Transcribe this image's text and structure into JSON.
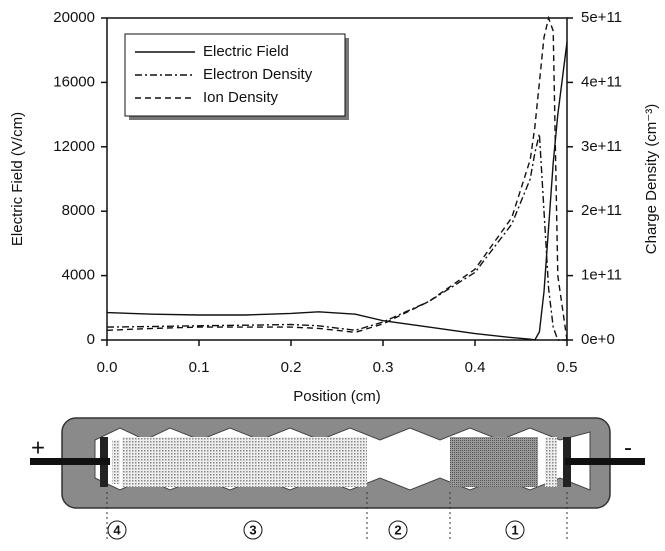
{
  "chart_data": {
    "type": "line",
    "xlabel": "Position (cm)",
    "ylabel": "Electric Field (V/cm)",
    "y2label": "Charge Density (cm⁻³)",
    "x": [
      0,
      0.05,
      0.1,
      0.15,
      0.2,
      0.23,
      0.27,
      0.3,
      0.35,
      0.4,
      0.44,
      0.46,
      0.465,
      0.47,
      0.475,
      0.48,
      0.485,
      0.49,
      0.5
    ],
    "series": [
      {
        "name": "Electric Field",
        "color": "#111111",
        "dash": "none",
        "axis": "y",
        "values": [
          1700,
          1600,
          1550,
          1550,
          1650,
          1750,
          1600,
          1200,
          800,
          400,
          150,
          50,
          0,
          500,
          3000,
          7000,
          11000,
          14000,
          18500
        ]
      },
      {
        "name": "Electron Density",
        "color": "#111111",
        "dash": "7 3 2 3",
        "axis": "y2",
        "values": [
          20000000000,
          21000000000,
          22000000000,
          23000000000,
          24000000000,
          22000000000,
          15000000000,
          28000000000,
          60000000000,
          105000000000,
          180000000000,
          250000000000,
          290000000000,
          320000000000,
          200000000000,
          80000000000,
          20000000000,
          0,
          0
        ]
      },
      {
        "name": "Ion Density",
        "color": "#111111",
        "dash": "6 4",
        "axis": "y2",
        "values": [
          15000000000,
          18000000000,
          20000000000,
          20000000000,
          20000000000,
          18000000000,
          12000000000,
          25000000000,
          60000000000,
          110000000000,
          190000000000,
          280000000000,
          330000000000,
          400000000000,
          470000000000,
          500000000000,
          480000000000,
          100000000000,
          0
        ]
      }
    ],
    "xlim": [
      0,
      0.5
    ],
    "xticks": [
      {
        "value": 0,
        "label": "0.0"
      },
      0.1,
      0.2,
      0.3,
      0.4,
      0.5
    ],
    "ylim": [
      0,
      20000
    ],
    "yticks": [
      0,
      4000,
      8000,
      12000,
      16000,
      20000
    ],
    "y2lim": [
      0,
      500000000000
    ],
    "y2ticks": [
      {
        "value": 0,
        "label": "0e+0"
      },
      {
        "value": 100000000000,
        "label": "1e+11"
      },
      {
        "value": 200000000000,
        "label": "2e+11"
      },
      {
        "value": 300000000000,
        "label": "3e+11"
      },
      {
        "value": 400000000000,
        "label": "4e+11"
      },
      {
        "value": 500000000000,
        "label": "5e+11"
      }
    ],
    "legend": "upper left"
  },
  "diagram": {
    "plus": "+",
    "minus": "-",
    "regions": [
      "4",
      "3",
      "2",
      "1"
    ]
  }
}
